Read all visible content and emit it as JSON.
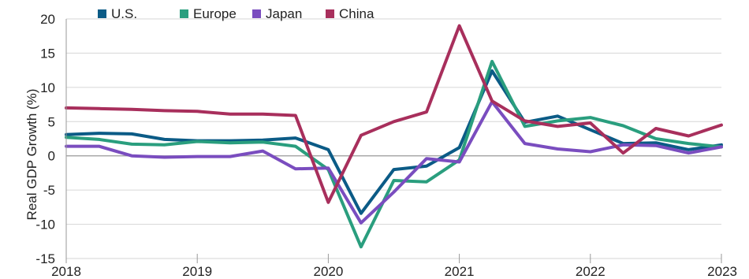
{
  "chart_data": {
    "type": "line",
    "ylabel": "Real GDP Growth (%)",
    "ylim": [
      -15,
      20
    ],
    "yticks": [
      20,
      15,
      10,
      5,
      0,
      -5,
      -10,
      -15
    ],
    "ytick_labels": [
      "20",
      "15",
      "10",
      "5",
      "0",
      "-5",
      "-10",
      "-15"
    ],
    "xlim": [
      2018.0,
      2023.0
    ],
    "xticks": [
      2018,
      2019,
      2020,
      2021,
      2022,
      2023
    ],
    "xtick_labels": [
      "2018",
      "2019",
      "2020",
      "2021",
      "2022",
      "2023"
    ],
    "grid": "horizontal",
    "zero_line": true,
    "legend_position": "top",
    "x": [
      2018.0,
      2018.25,
      2018.5,
      2018.75,
      2019.0,
      2019.25,
      2019.5,
      2019.75,
      2020.0,
      2020.25,
      2020.5,
      2020.75,
      2021.0,
      2021.25,
      2021.5,
      2021.75,
      2022.0,
      2022.25,
      2022.5,
      2022.75,
      2023.0
    ],
    "series": [
      {
        "name": "U.S.",
        "color": "#0b5b86",
        "values": [
          3.1,
          3.3,
          3.2,
          2.4,
          2.2,
          2.2,
          2.3,
          2.6,
          0.9,
          -8.4,
          -2.0,
          -1.5,
          1.2,
          12.4,
          4.9,
          5.8,
          3.8,
          1.8,
          1.9,
          0.9,
          1.6
        ]
      },
      {
        "name": "Europe",
        "color": "#2a9e7e",
        "values": [
          2.7,
          2.4,
          1.7,
          1.6,
          2.1,
          1.9,
          2.0,
          1.4,
          -2.0,
          -13.3,
          -3.6,
          -3.8,
          -0.6,
          13.8,
          4.3,
          5.1,
          5.6,
          4.4,
          2.5,
          1.8,
          1.3
        ]
      },
      {
        "name": "Japan",
        "color": "#7a4dbf",
        "values": [
          1.4,
          1.4,
          0.0,
          -0.2,
          -0.1,
          -0.1,
          0.7,
          -1.9,
          -1.8,
          -9.8,
          -5.3,
          -0.4,
          -0.9,
          7.9,
          1.8,
          1.0,
          0.6,
          1.6,
          1.5,
          0.4,
          1.3
        ]
      },
      {
        "name": "China",
        "color": "#a82f5c",
        "values": [
          7.0,
          6.9,
          6.8,
          6.6,
          6.5,
          6.1,
          6.1,
          5.9,
          -6.8,
          3.0,
          5.0,
          6.4,
          19.0,
          8.0,
          5.1,
          4.3,
          4.8,
          0.4,
          4.0,
          2.9,
          4.5
        ]
      }
    ]
  }
}
